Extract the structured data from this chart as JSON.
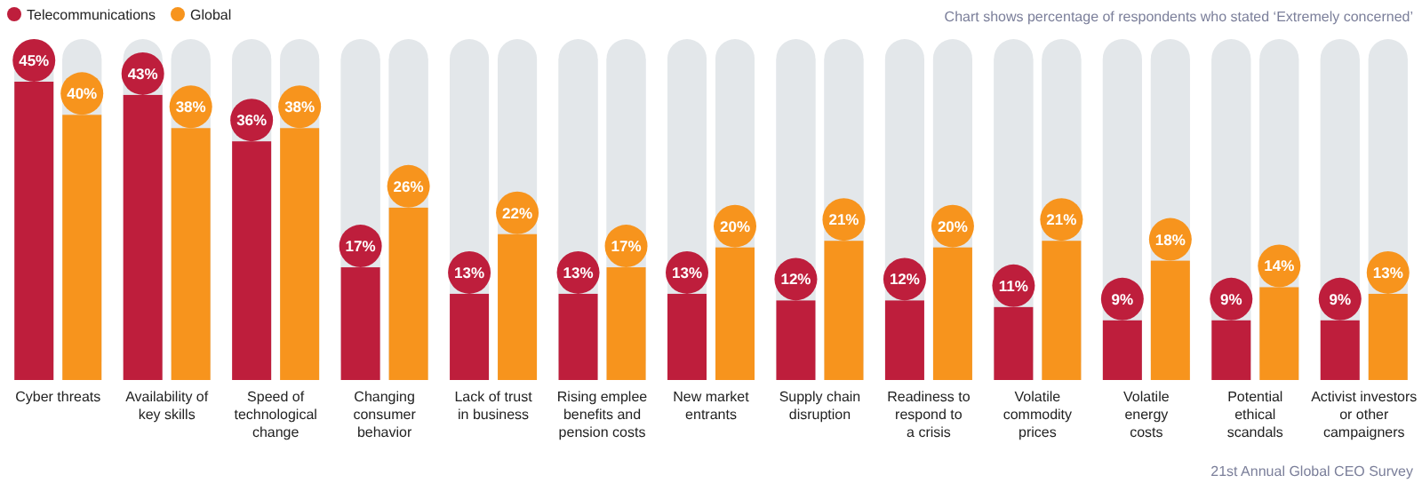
{
  "chart_data": {
    "type": "bar",
    "subtitle": "Chart shows percentage of respondents who stated ‘Extremely concerned’",
    "categories": [
      "Cyber threats",
      "Availability of\nkey skills",
      "Speed of\ntechnological\nchange",
      "Changing\nconsumer\nbehavior",
      "Lack of trust\nin business",
      "Rising emplee\nbenefits and\npension costs",
      "New market\nentrants",
      "Supply chain\ndisruption",
      "Readiness to\nrespond to\na crisis",
      "Volatile\ncommodity\nprices",
      "Volatile\nenergy\ncosts",
      "Potential\nethical\nscandals",
      "Activist investors\nor other\ncampaigners"
    ],
    "series": [
      {
        "name": "Telecommunications",
        "color": "#be1e3c",
        "values": [
          45,
          43,
          36,
          17,
          13,
          13,
          13,
          12,
          12,
          11,
          9,
          9,
          9
        ],
        "value_labels": [
          "45%",
          "43%",
          "36%",
          "17%",
          "13%",
          "13%",
          "13%",
          "12%",
          "12%",
          "11%",
          "9%",
          "9%",
          "9%"
        ]
      },
      {
        "name": "Global",
        "color": "#f7941d",
        "values": [
          40,
          38,
          38,
          26,
          22,
          17,
          20,
          21,
          20,
          21,
          18,
          14,
          13
        ],
        "value_labels": [
          "40%",
          "38%",
          "38%",
          "26%",
          "22%",
          "17%",
          "20%",
          "21%",
          "20%",
          "21%",
          "18%",
          "14%",
          "13%"
        ]
      }
    ],
    "legend": "top left",
    "annotations": [
      "21st Annual Global CEO Survey"
    ]
  }
}
